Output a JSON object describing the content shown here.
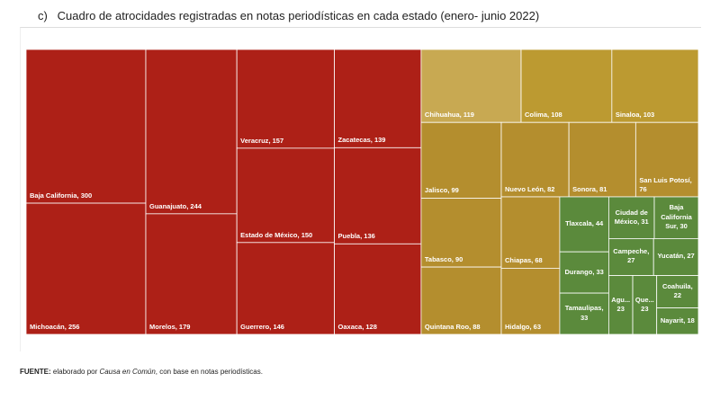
{
  "chart_data": {
    "type": "treemap",
    "title": "c)   Cuadro de atrocidades registradas en notas periodísticas en cada estado (enero- junio 2022)",
    "categories": [
      "Baja California",
      "Michoacán",
      "Guanajuato",
      "Morelos",
      "Veracruz",
      "Estado de México",
      "Guerrero",
      "Zacatecas",
      "Puebla",
      "Oaxaca",
      "Chihuahua",
      "Colima",
      "Sinaloa",
      "Jalisco",
      "Tabasco",
      "Quintana Roo",
      "Nuevo León",
      "Sonora",
      "San Luis Potosí",
      "Chiapas",
      "Hidalgo",
      "Tlaxcala",
      "Durango",
      "Tamaulipas",
      "Ciudad de México",
      "Baja California Sur",
      "Campeche",
      "Yucatán",
      "Agu...",
      "Que...",
      "Coahuila",
      "Nayarit"
    ],
    "values": [
      300,
      256,
      244,
      179,
      157,
      150,
      146,
      139,
      136,
      128,
      119,
      108,
      103,
      99,
      90,
      88,
      82,
      81,
      76,
      68,
      63,
      44,
      33,
      33,
      31,
      30,
      27,
      27,
      23,
      23,
      22,
      18
    ],
    "colors": [
      "#ad2017",
      "#ad2017",
      "#ad2017",
      "#ad2017",
      "#ad2017",
      "#ad2017",
      "#ad2017",
      "#ad2017",
      "#ad2017",
      "#ad2017",
      "#c8a952",
      "#bc9a31",
      "#bc9a31",
      "#b48e2e",
      "#b48e2e",
      "#b48e2e",
      "#b48e2e",
      "#b48e2e",
      "#b48e2e",
      "#b48e2e",
      "#b48e2e",
      "#5b8a3c",
      "#5b8a3c",
      "#5b8a3c",
      "#5b8a3c",
      "#5b8a3c",
      "#5b8a3c",
      "#5b8a3c",
      "#5b8a3c",
      "#5b8a3c",
      "#5b8a3c",
      "#5b8a3c"
    ]
  },
  "footer": {
    "label": "FUENTE:",
    "text_before": "elaborado por",
    "italic": "Causa en Común",
    "text_after": ", con base en notas periodísticas."
  }
}
